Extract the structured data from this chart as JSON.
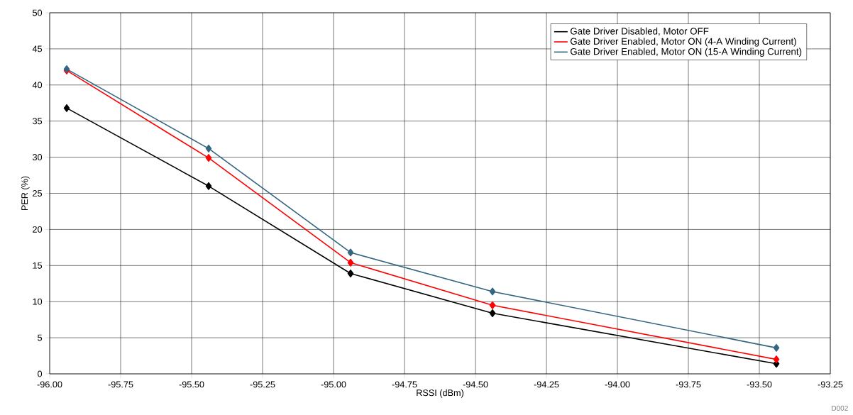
{
  "chart_data": {
    "type": "line",
    "xlabel": "RSSI (dBm)",
    "ylabel": "PER (%)",
    "x": [
      -95.94,
      -95.44,
      -94.94,
      -94.44,
      -93.44
    ],
    "series": [
      {
        "name": "Gate Driver Disabled, Motor OFF",
        "color": "#000000",
        "values": [
          36.8,
          26.0,
          13.9,
          8.4,
          1.4
        ]
      },
      {
        "name": "Gate Driver Enabled, Motor ON (4-A Winding Current)",
        "color": "#ff0000",
        "values": [
          42.0,
          29.9,
          15.4,
          9.5,
          2.0
        ]
      },
      {
        "name": "Gate Driver Enabled, Motor ON (15-A Winding Current)",
        "color": "#336680",
        "values": [
          42.2,
          31.2,
          16.8,
          11.4,
          3.6
        ]
      }
    ],
    "xlim": [
      -96,
      -93.25
    ],
    "xticks": [
      {
        "value": -96,
        "label": "-96.00"
      },
      {
        "value": -95.75,
        "label": "-95.75"
      },
      {
        "value": -95.5,
        "label": "-95.50"
      },
      {
        "value": -95.25,
        "label": "-95.25"
      },
      {
        "value": -95,
        "label": "-95.00"
      },
      {
        "value": -94.75,
        "label": "-94.75"
      },
      {
        "value": -94.5,
        "label": "-94.50"
      },
      {
        "value": -94.25,
        "label": "-94.25"
      },
      {
        "value": -94,
        "label": "-94.00"
      },
      {
        "value": -93.75,
        "label": "-93.75"
      },
      {
        "value": -93.5,
        "label": "-93.50"
      },
      {
        "value": -93.25,
        "label": "-93.25"
      }
    ],
    "ylim": [
      0,
      50
    ],
    "yticks": [
      0,
      5,
      10,
      15,
      20,
      25,
      30,
      35,
      40,
      45,
      50
    ],
    "grid": true,
    "legend": "top right",
    "marker": "diamond",
    "line_style": "solid",
    "annotations": [
      "D002"
    ]
  }
}
